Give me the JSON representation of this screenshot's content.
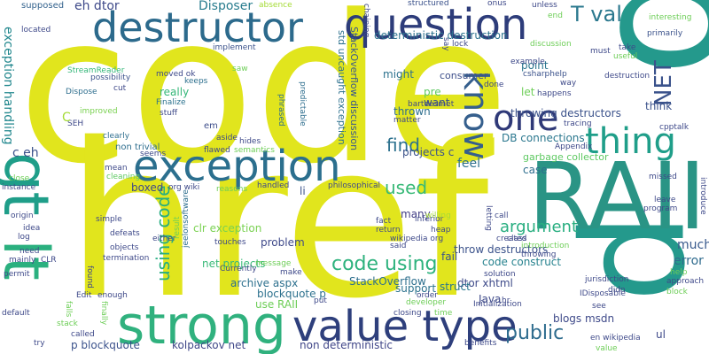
{
  "cloud": {
    "words": [
      {
        "text": "code",
        "color": "#e1e51d"
      },
      {
        "text": "href",
        "color": "#e1e51d"
      },
      {
        "text": "p",
        "color": "#24998c"
      },
      {
        "text": "RAII",
        "color": "#2a9485"
      },
      {
        "text": "gt",
        "color": "#1f9e89"
      },
      {
        "text": "lt",
        "color": "#2bb07f"
      },
      {
        "text": "strong",
        "color": "#30b17e"
      },
      {
        "text": "value type",
        "color": "#2e3f7c"
      },
      {
        "text": "destructor",
        "color": "#2c6a8c"
      },
      {
        "text": "question",
        "color": "#2d3c7a"
      },
      {
        "text": "exception",
        "color": "#2b6f8e"
      },
      {
        "text": "one",
        "color": "#2f3978"
      },
      {
        "text": "thing",
        "color": "#1f9e89"
      },
      {
        "text": "know",
        "color": "#355f8d"
      },
      {
        "text": "NET",
        "color": "#3a528b"
      },
      {
        "text": "T val",
        "color": "#2b788e"
      },
      {
        "text": "code using",
        "color": "#2db27d"
      },
      {
        "text": "using code",
        "color": "#27ad81"
      },
      {
        "text": "c eh",
        "color": "#3b528b"
      },
      {
        "text": "exception handling",
        "color": "#23888e"
      },
      {
        "text": "argument",
        "color": "#28ae80"
      },
      {
        "text": "find",
        "color": "#2c718e"
      },
      {
        "text": "used",
        "color": "#38b977"
      },
      {
        "text": "public",
        "color": "#2e6c8e"
      },
      {
        "text": "throwing destructors",
        "color": "#3b528b"
      },
      {
        "text": "std uncaught exception",
        "color": "#2d718e"
      },
      {
        "text": "StackOverflow discussion",
        "color": "#39578c"
      },
      {
        "text": "deterministic destruction",
        "color": "#2c728e"
      },
      {
        "text": "eh dtor",
        "color": "#3e4989"
      },
      {
        "text": "Disposer",
        "color": "#287c8e"
      },
      {
        "text": "supposed",
        "color": "#33628d"
      },
      {
        "text": "throw destructors",
        "color": "#3b528b"
      },
      {
        "text": "code construct",
        "color": "#26828e"
      },
      {
        "text": "DB connections",
        "color": "#2a778e"
      },
      {
        "text": "garbage collector",
        "color": "#5ec962"
      },
      {
        "text": "clr exception",
        "color": "#7ad151"
      },
      {
        "text": "net projects",
        "color": "#38b977"
      },
      {
        "text": "StackOverflow",
        "color": "#2e6f8e"
      },
      {
        "text": "archive aspx",
        "color": "#2d708e"
      },
      {
        "text": "blockquote p",
        "color": "#2d718e"
      },
      {
        "text": "dtor xhtml",
        "color": "#3e4a89"
      },
      {
        "text": "blogs msdn",
        "color": "#3e4989"
      },
      {
        "text": "non deterministic",
        "color": "#404688"
      },
      {
        "text": "kolpackov net",
        "color": "#3f4788"
      },
      {
        "text": "p blockquote",
        "color": "#3b528b"
      },
      {
        "text": "non trivial",
        "color": "#2e6e8e"
      },
      {
        "text": "feel",
        "color": "#2d708e"
      },
      {
        "text": "fail",
        "color": "#3a538b"
      },
      {
        "text": "struct",
        "color": "#2a768e"
      },
      {
        "text": "Java",
        "color": "#3e4a89"
      },
      {
        "text": "support",
        "color": "#2c728e"
      },
      {
        "text": "much",
        "color": "#38598c"
      },
      {
        "text": "error",
        "color": "#2f6b8e"
      },
      {
        "text": "problem",
        "color": "#3e4989"
      },
      {
        "text": "many",
        "color": "#433e85"
      },
      {
        "text": "might",
        "color": "#2c728e"
      },
      {
        "text": "point",
        "color": "#2a768e"
      },
      {
        "text": "consumer",
        "color": "#3d4e8a"
      },
      {
        "text": "let",
        "color": "#6ece58"
      },
      {
        "text": "want",
        "color": "#3b528b"
      },
      {
        "text": "pre",
        "color": "#5ec962"
      },
      {
        "text": "thrown",
        "color": "#2e6e8e"
      },
      {
        "text": "really",
        "color": "#35b779"
      },
      {
        "text": "em",
        "color": "#3d4e8a"
      },
      {
        "text": "case",
        "color": "#2e6e8e"
      },
      {
        "text": "use RAII",
        "color": "#6ece58"
      },
      {
        "text": "boxed",
        "color": "#3e4989"
      },
      {
        "text": "projects c",
        "color": "#3b528b"
      },
      {
        "text": "li",
        "color": "#3b528b"
      },
      {
        "text": "think",
        "color": "#3b528b"
      },
      {
        "text": "really",
        "color": "#35b779"
      },
      {
        "text": "Finalize",
        "color": "#2c728e"
      },
      {
        "text": "stuff",
        "color": "#3e4a89"
      },
      {
        "text": "possibility",
        "color": "#3b528b"
      },
      {
        "text": "moved ok",
        "color": "#3e4989"
      },
      {
        "text": "keeps",
        "color": "#2d708e"
      },
      {
        "text": "phrased",
        "color": "#2e6e8e"
      },
      {
        "text": "predictable",
        "color": "#2e6e8e"
      },
      {
        "text": "implement",
        "color": "#3b528b"
      },
      {
        "text": "absence",
        "color": "#a5db36"
      },
      {
        "text": "structured",
        "color": "#3b528b"
      },
      {
        "text": "chaining",
        "color": "#3e4989"
      },
      {
        "text": "onus",
        "color": "#3e4989"
      },
      {
        "text": "unless",
        "color": "#3e4989"
      },
      {
        "text": "end",
        "color": "#6ece58"
      },
      {
        "text": "interesting",
        "color": "#6ece58"
      },
      {
        "text": "primarily",
        "color": "#3b528b"
      },
      {
        "text": "csharphelp",
        "color": "#3b528b"
      },
      {
        "text": "take",
        "color": "#3e4989"
      },
      {
        "text": "useful",
        "color": "#6ece58"
      },
      {
        "text": "must",
        "color": "#3e4989"
      },
      {
        "text": "destruction",
        "color": "#3e4989"
      },
      {
        "text": "way",
        "color": "#3e4989"
      },
      {
        "text": "happens",
        "color": "#3e4989"
      },
      {
        "text": "discussion",
        "color": "#6ece58"
      },
      {
        "text": "example",
        "color": "#3e4989"
      },
      {
        "text": "done",
        "color": "#3e4989"
      },
      {
        "text": "lock",
        "color": "#3e4989"
      },
      {
        "text": "say",
        "color": "#3e4989"
      },
      {
        "text": "Dispose",
        "color": "#2e6e8e"
      },
      {
        "text": "StreamReader",
        "color": "#35b779"
      },
      {
        "text": "cut",
        "color": "#3e4989"
      },
      {
        "text": "improved",
        "color": "#7ad151"
      },
      {
        "text": "SEH",
        "color": "#3e4989"
      },
      {
        "text": "located",
        "color": "#3e4989"
      },
      {
        "text": "saw",
        "color": "#6ece58"
      },
      {
        "text": "em",
        "color": "#3e4989"
      },
      {
        "text": "clearly",
        "color": "#2e6e8e"
      },
      {
        "text": "seems",
        "color": "#3e4989"
      },
      {
        "text": "mean",
        "color": "#3e4989"
      },
      {
        "text": "cleaning",
        "color": "#5ec962"
      },
      {
        "text": "aside",
        "color": "#3e4989"
      },
      {
        "text": "hides",
        "color": "#3e4989"
      },
      {
        "text": "flawed",
        "color": "#3e4989"
      },
      {
        "text": "semantics",
        "color": "#6ece58"
      },
      {
        "text": "reasons",
        "color": "#6ece58"
      },
      {
        "text": "handled",
        "color": "#3e4989"
      },
      {
        "text": "org wiki",
        "color": "#3e4989"
      },
      {
        "text": "jeelonsoftware",
        "color": "#2e6e8e"
      },
      {
        "text": "philosophical",
        "color": "#3e4989"
      },
      {
        "text": "bartdesmet",
        "color": "#3e4989"
      },
      {
        "text": "matter",
        "color": "#3e4989"
      },
      {
        "text": "tracing",
        "color": "#3e4989"
      },
      {
        "text": "cpptalk",
        "color": "#3e4989"
      },
      {
        "text": "Appendix",
        "color": "#3e4989"
      },
      {
        "text": "missed",
        "color": "#3e4989"
      },
      {
        "text": "leave",
        "color": "#3e4989"
      },
      {
        "text": "program",
        "color": "#3e4989"
      },
      {
        "text": "introduce",
        "color": "#3e4989"
      },
      {
        "text": "help",
        "color": "#6ece58"
      },
      {
        "text": "approach",
        "color": "#3e4989"
      },
      {
        "text": "block",
        "color": "#6ece58"
      },
      {
        "text": "jurisdiction",
        "color": "#3e4989"
      },
      {
        "text": "didn",
        "color": "#3e4989"
      },
      {
        "text": "IDisposable",
        "color": "#3e4989"
      },
      {
        "text": "see",
        "color": "#3e4989"
      },
      {
        "text": "en wikipedia",
        "color": "#3e4989"
      },
      {
        "text": "value",
        "color": "#6ece58"
      },
      {
        "text": "ul",
        "color": "#3e4989"
      },
      {
        "text": "class",
        "color": "#3e4989"
      },
      {
        "text": "call",
        "color": "#3e4989"
      },
      {
        "text": "created",
        "color": "#3e4989"
      },
      {
        "text": "introduction",
        "color": "#6ece58"
      },
      {
        "text": "throwing",
        "color": "#3e4989"
      },
      {
        "text": "letting",
        "color": "#3e4989"
      },
      {
        "text": "solution",
        "color": "#3e4989"
      },
      {
        "text": "Initialization",
        "color": "#3e4989"
      },
      {
        "text": "benefits",
        "color": "#3e4989"
      },
      {
        "text": "time",
        "color": "#6ece58"
      },
      {
        "text": "closing",
        "color": "#3e4989"
      },
      {
        "text": "developer",
        "color": "#6ece58"
      },
      {
        "text": "order",
        "color": "#3e4989"
      },
      {
        "text": "inferior",
        "color": "#3e4989"
      },
      {
        "text": "heap",
        "color": "#3e4989"
      },
      {
        "text": "willing",
        "color": "#a5db36"
      },
      {
        "text": "fact",
        "color": "#3e4989"
      },
      {
        "text": "return",
        "color": "#3e4989"
      },
      {
        "text": "said",
        "color": "#3e4989"
      },
      {
        "text": "wikipedia org",
        "color": "#3e4989"
      },
      {
        "text": "hr",
        "color": "#3e4989"
      },
      {
        "text": "put",
        "color": "#3e4989"
      },
      {
        "text": "make",
        "color": "#3e4989"
      },
      {
        "text": "message",
        "color": "#6ece58"
      },
      {
        "text": "Currently",
        "color": "#3e4989"
      },
      {
        "text": "touches",
        "color": "#3e4989"
      },
      {
        "text": "either",
        "color": "#3e4989"
      },
      {
        "text": "result",
        "color": "#6ece58"
      },
      {
        "text": "defeats",
        "color": "#3e4989"
      },
      {
        "text": "objects",
        "color": "#3e4989"
      },
      {
        "text": "termination",
        "color": "#3e4989"
      },
      {
        "text": "simple",
        "color": "#3e4989"
      },
      {
        "text": "found",
        "color": "#3e4989"
      },
      {
        "text": "enough",
        "color": "#3e4989"
      },
      {
        "text": "Edit",
        "color": "#3e4989"
      },
      {
        "text": "finally",
        "color": "#6ece58"
      },
      {
        "text": "called",
        "color": "#3e4989"
      },
      {
        "text": "falls",
        "color": "#6ece58"
      },
      {
        "text": "stack",
        "color": "#6ece58"
      },
      {
        "text": "try",
        "color": "#3e4989"
      },
      {
        "text": "default",
        "color": "#3e4989"
      },
      {
        "text": "permit",
        "color": "#3e4989"
      },
      {
        "text": "mainly",
        "color": "#3e4989"
      },
      {
        "text": "CLR",
        "color": "#3e4989"
      },
      {
        "text": "need",
        "color": "#3e4989"
      },
      {
        "text": "log",
        "color": "#3e4989"
      },
      {
        "text": "idea",
        "color": "#3e4989"
      },
      {
        "text": "origin",
        "color": "#3e4989"
      },
      {
        "text": "instance",
        "color": "#3e4989"
      },
      {
        "text": "close",
        "color": "#6ece58"
      },
      {
        "text": "C",
        "color": "#a5db36"
      }
    ]
  }
}
